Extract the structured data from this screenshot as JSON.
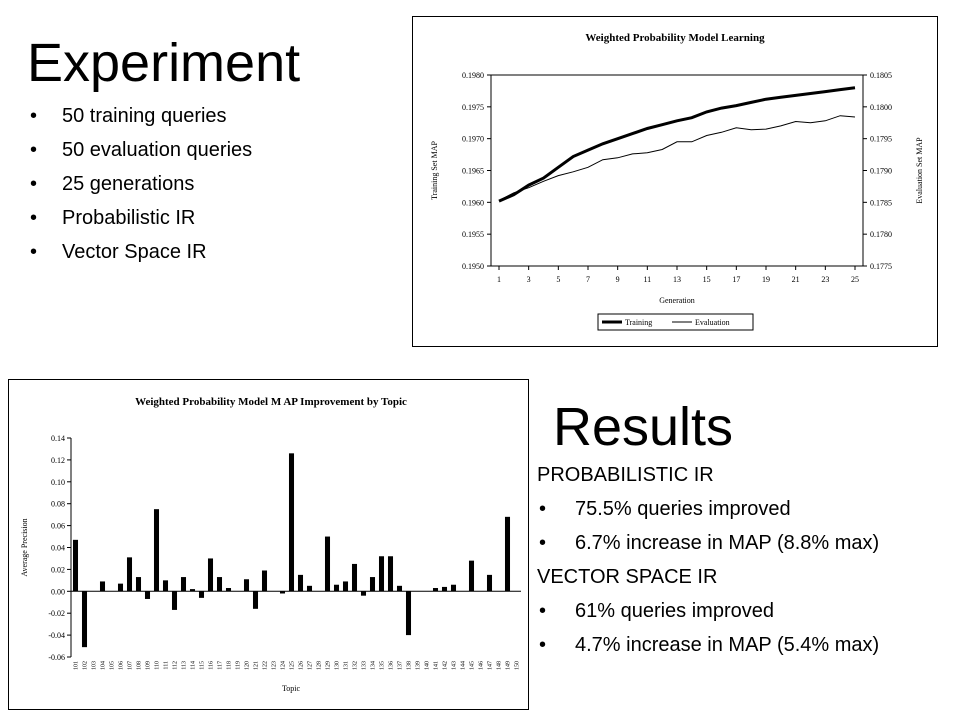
{
  "experiment": {
    "title": "Experiment",
    "bullets": [
      "50 training queries",
      "50 evaluation queries",
      "25 generations",
      "Probabilistic IR",
      "Vector Space IR"
    ]
  },
  "results": {
    "title": "Results",
    "sections": [
      {
        "heading": "PROBABILISTIC IR",
        "bullets": [
          "75.5% queries improved",
          "6.7% increase in MAP (8.8% max)"
        ]
      },
      {
        "heading": "VECTOR SPACE IR",
        "bullets": [
          "61% queries improved",
          "4.7% increase in MAP (5.4% max)"
        ]
      }
    ]
  },
  "chart_data": [
    {
      "type": "line",
      "title": "Weighted Probability Model Learning",
      "xlabel": "Generation",
      "ylabel": "Training Set MAP",
      "y2label": "Evaluation Set MAP",
      "x": [
        1,
        2,
        3,
        4,
        5,
        6,
        7,
        8,
        9,
        10,
        11,
        12,
        13,
        14,
        15,
        16,
        17,
        18,
        19,
        20,
        21,
        22,
        23,
        24,
        25
      ],
      "x_ticks": [
        "1",
        "3",
        "5",
        "7",
        "9",
        "11",
        "13",
        "15",
        "17",
        "19",
        "21",
        "23",
        "25"
      ],
      "ylim": [
        0.195,
        0.198
      ],
      "y_ticks": [
        "0.1950",
        "0.1955",
        "0.1960",
        "0.1965",
        "0.1970",
        "0.1975",
        "0.1980"
      ],
      "y2lim": [
        0.1775,
        0.1805
      ],
      "y2_ticks": [
        "0.1775",
        "0.1780",
        "0.1785",
        "0.1790",
        "0.1795",
        "0.1800",
        "0.1805"
      ],
      "series": [
        {
          "name": "Training",
          "axis": "left",
          "color": "#000000",
          "values": [
            0.19602,
            0.19612,
            0.19627,
            0.19638,
            0.19655,
            0.19672,
            0.19682,
            0.19692,
            0.197,
            0.19708,
            0.19716,
            0.19722,
            0.19728,
            0.19733,
            0.19742,
            0.19748,
            0.19752,
            0.19757,
            0.19762,
            0.19765,
            0.19768,
            0.19771,
            0.19774,
            0.19777,
            0.1978
          ]
        },
        {
          "name": "Evaluation",
          "axis": "right",
          "color": "#000000",
          "values": [
            0.17853,
            0.17865,
            0.17873,
            0.17883,
            0.17892,
            0.17898,
            0.17905,
            0.17917,
            0.1792,
            0.17926,
            0.17928,
            0.17933,
            0.17945,
            0.17945,
            0.17955,
            0.1796,
            0.17967,
            0.17964,
            0.17965,
            0.1797,
            0.17977,
            0.17975,
            0.17978,
            0.17986,
            0.17984
          ]
        }
      ],
      "legend": "bottom"
    },
    {
      "type": "bar",
      "title": "Weighted Probability Model M AP Improvement by Topic",
      "xlabel": "Topic",
      "ylabel": "Average Precision",
      "ylim": [
        -0.06,
        0.14
      ],
      "y_ticks": [
        "-0.06",
        "-0.04",
        "-0.02",
        "0.00",
        "0.02",
        "0.04",
        "0.06",
        "0.08",
        "0.10",
        "0.12",
        "0.14"
      ],
      "categories": [
        "101",
        "102",
        "103",
        "104",
        "105",
        "106",
        "107",
        "108",
        "109",
        "110",
        "111",
        "112",
        "113",
        "114",
        "115",
        "116",
        "117",
        "118",
        "119",
        "120",
        "121",
        "122",
        "123",
        "124",
        "125",
        "126",
        "127",
        "128",
        "129",
        "130",
        "131",
        "132",
        "133",
        "134",
        "135",
        "136",
        "137",
        "138",
        "139",
        "140",
        "141",
        "142",
        "143",
        "144",
        "145",
        "146",
        "147",
        "148",
        "149",
        "150"
      ],
      "values": [
        0.047,
        -0.051,
        0.0,
        0.009,
        0.0,
        0.007,
        0.031,
        0.013,
        -0.007,
        0.075,
        0.01,
        -0.017,
        0.013,
        0.002,
        -0.006,
        0.03,
        0.013,
        0.003,
        0.0,
        0.011,
        -0.016,
        0.019,
        0.0,
        -0.002,
        0.126,
        0.015,
        0.005,
        0.0,
        0.05,
        0.006,
        0.009,
        0.025,
        -0.004,
        0.013,
        0.032,
        0.032,
        0.005,
        -0.04,
        0.0,
        0.0,
        0.003,
        0.004,
        0.006,
        0.0,
        0.028,
        0.0,
        0.015,
        0.0,
        0.068,
        0.0
      ]
    }
  ]
}
